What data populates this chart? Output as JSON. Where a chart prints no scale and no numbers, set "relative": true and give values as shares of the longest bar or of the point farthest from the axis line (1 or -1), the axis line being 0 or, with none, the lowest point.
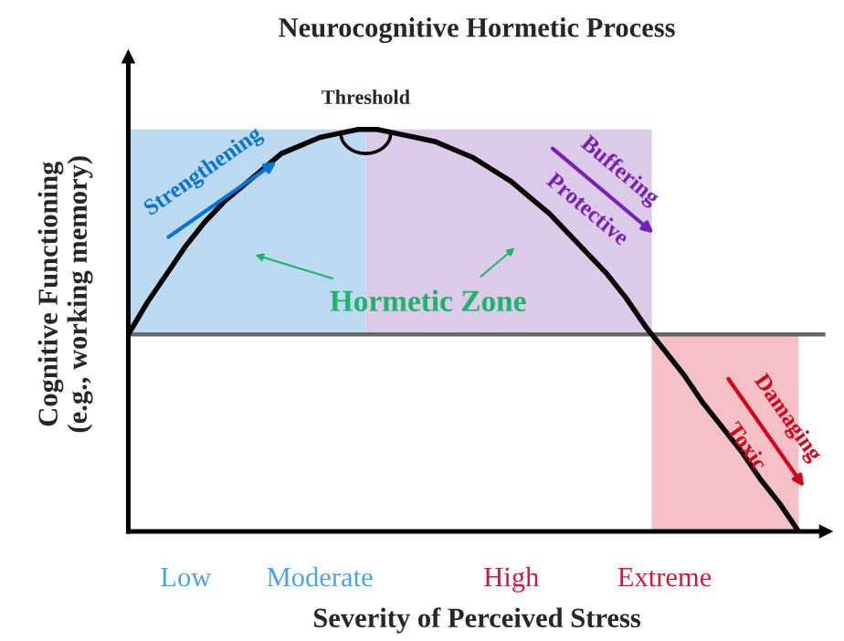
{
  "chart_data": {
    "type": "line",
    "title": "Neurocognitive Hormetic Process",
    "xlabel": "Severity of Perceived Stress",
    "ylabel": "Cognitive Functioning\n(e.g., working memory)",
    "relative": true,
    "tick_labels": "x",
    "legend": false,
    "grid": false,
    "marker": "none",
    "line_style": "solid",
    "categories": [
      null,
      null,
      null,
      "Low",
      null,
      null,
      null,
      null,
      null,
      null,
      "Moderate",
      null,
      null,
      null,
      null,
      null,
      null,
      null,
      null,
      null,
      "High",
      null,
      null,
      null,
      null,
      null,
      null,
      null,
      "Extreme",
      null,
      null,
      null,
      null,
      null,
      null,
      null
    ],
    "series": [
      {
        "color": "#000000",
        "values": [
          0.49,
          0.57,
          0.64,
          0.71,
          0.77,
          0.82,
          0.86,
          0.9,
          0.94,
          0.96,
          0.98,
          0.99,
          1.0,
          1.0,
          0.99,
          0.98,
          0.97,
          0.95,
          0.93,
          0.9,
          0.87,
          0.83,
          0.79,
          0.74,
          0.69,
          0.64,
          0.58,
          0.51,
          0.45,
          0.39,
          0.32,
          0.26,
          0.2,
          0.13,
          0.07,
          0.0
        ]
      }
    ],
    "ref_lines": [
      {
        "axis": "y",
        "value": 0.49,
        "color": "#666666"
      }
    ],
    "annotations": [
      {
        "text": "Threshold",
        "y": 1.0
      },
      "Hormetic Zone",
      "Strengthening",
      "Buffering",
      "Protective",
      "Damaging",
      "Toxic"
    ]
  }
}
